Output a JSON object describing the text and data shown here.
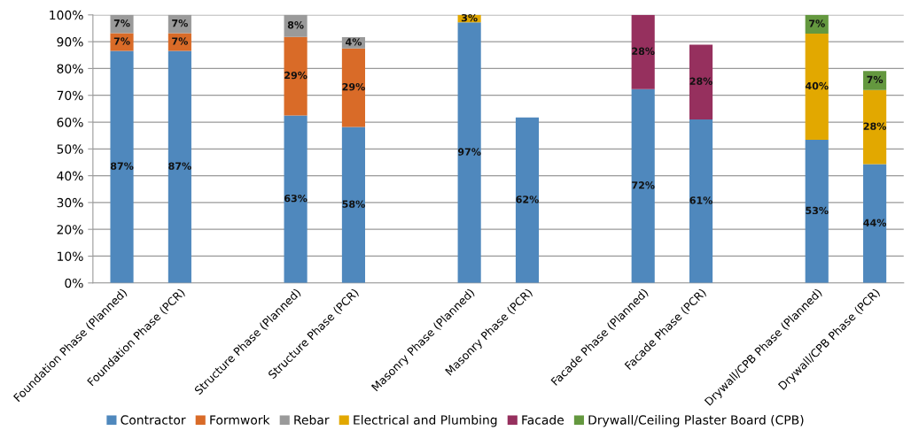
{
  "chart_data": {
    "type": "bar",
    "stacked": true,
    "categories": [
      "Foundation Phase (Planned)",
      "Foundation Phase (PCR)",
      null,
      "Structure Phase (Planned)",
      "Structure Phase (PCR)",
      null,
      "Masonry Phase (Planned)",
      "Masonry Phase (PCR)",
      null,
      "Facade Phase (Planned)",
      "Facade Phase (PCR)",
      null,
      "Drywall/CPB Phase (Planned)",
      "Drywall/CPB Phase (PCR)"
    ],
    "series": [
      {
        "name": "Contractor",
        "color": "#4f88bd",
        "values": [
          86.6,
          86.6,
          null,
          62.5,
          58.2,
          null,
          97.2,
          61.7,
          null,
          72.3,
          61.0,
          null,
          53.4,
          44.3
        ],
        "value_labels": [
          "87%",
          "87%",
          null,
          "63%",
          "58%",
          null,
          "97%",
          "62%",
          null,
          "72%",
          "61%",
          null,
          "53%",
          "44%"
        ]
      },
      {
        "name": "Formwork",
        "color": "#d96b28",
        "values": [
          6.6,
          6.6,
          null,
          29.3,
          29.3,
          null,
          null,
          null,
          null,
          null,
          null,
          null,
          null,
          null
        ],
        "value_labels": [
          "7%",
          "7%",
          null,
          "29%",
          "29%",
          null,
          null,
          null,
          null,
          null,
          null,
          null,
          null,
          null
        ]
      },
      {
        "name": "Rebar",
        "color": "#9a9a9a",
        "values": [
          6.8,
          6.8,
          null,
          8.2,
          4.2,
          null,
          null,
          null,
          null,
          null,
          null,
          null,
          null,
          null
        ],
        "value_labels": [
          "7%",
          "7%",
          null,
          "8%",
          "4%",
          null,
          null,
          null,
          null,
          null,
          null,
          null,
          null,
          null
        ]
      },
      {
        "name": "Electrical and Plumbing",
        "color": "#e2a800",
        "values": [
          null,
          null,
          null,
          null,
          null,
          null,
          2.8,
          null,
          null,
          null,
          null,
          null,
          39.6,
          27.7
        ],
        "value_labels": [
          null,
          null,
          null,
          null,
          null,
          null,
          "3%",
          null,
          null,
          null,
          null,
          null,
          "40%",
          "28%"
        ]
      },
      {
        "name": "Facade",
        "color": "#96305e",
        "values": [
          null,
          null,
          null,
          null,
          null,
          null,
          null,
          null,
          null,
          27.7,
          27.9,
          null,
          null,
          null
        ],
        "value_labels": [
          null,
          null,
          null,
          null,
          null,
          null,
          null,
          null,
          null,
          "28%",
          "28%",
          null,
          null,
          null
        ]
      },
      {
        "name": "Drywall/Ceiling Plaster Board (CPB)",
        "color": "#64983f",
        "values": [
          null,
          null,
          null,
          null,
          null,
          null,
          null,
          null,
          null,
          null,
          null,
          null,
          7.0,
          7.1
        ],
        "value_labels": [
          null,
          null,
          null,
          null,
          null,
          null,
          null,
          null,
          null,
          null,
          null,
          null,
          "7%",
          "7%"
        ]
      }
    ],
    "ylim": [
      0,
      100
    ],
    "yticks": [
      {
        "value": 0,
        "label": "0%"
      },
      {
        "value": 10,
        "label": "10%"
      },
      {
        "value": 20,
        "label": "20%"
      },
      {
        "value": 30,
        "label": "30%"
      },
      {
        "value": 40,
        "label": "40%"
      },
      {
        "value": 50,
        "label": "50%"
      },
      {
        "value": 60,
        "label": "60%"
      },
      {
        "value": 70,
        "label": "70%"
      },
      {
        "value": 80,
        "label": "80%"
      },
      {
        "value": 90,
        "label": "90%"
      },
      {
        "value": 100,
        "label": "100%"
      }
    ],
    "grid": "y",
    "legend": "bottom"
  }
}
